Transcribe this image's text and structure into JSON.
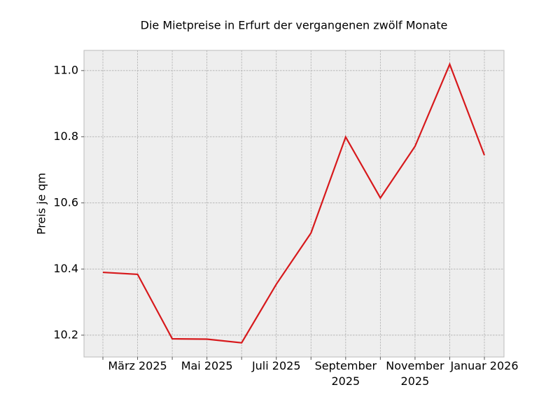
{
  "chart_data": {
    "type": "line",
    "title": "Die Mietpreise in Erfurt der vergangenen zwölf Monate",
    "y_label": "Preis je qm",
    "categories": [
      null,
      "März 2025",
      null,
      "Mai 2025",
      null,
      "Juli 2025",
      null,
      "September 2025",
      null,
      "November 2025",
      null,
      "Januar 2026"
    ],
    "series": [
      {
        "name": "Preis je qm",
        "color": "#d7191c",
        "values": [
          10.39,
          10.384,
          10.189,
          10.188,
          10.177,
          10.354,
          10.509,
          10.799,
          10.615,
          10.771,
          11.019,
          10.744
        ]
      }
    ],
    "ylim": [
      10.134,
      11.061
    ],
    "yticks": [
      10.2,
      10.4,
      10.6,
      10.8,
      {
        "value": 11,
        "label": "11.0"
      }
    ],
    "grid": true
  }
}
